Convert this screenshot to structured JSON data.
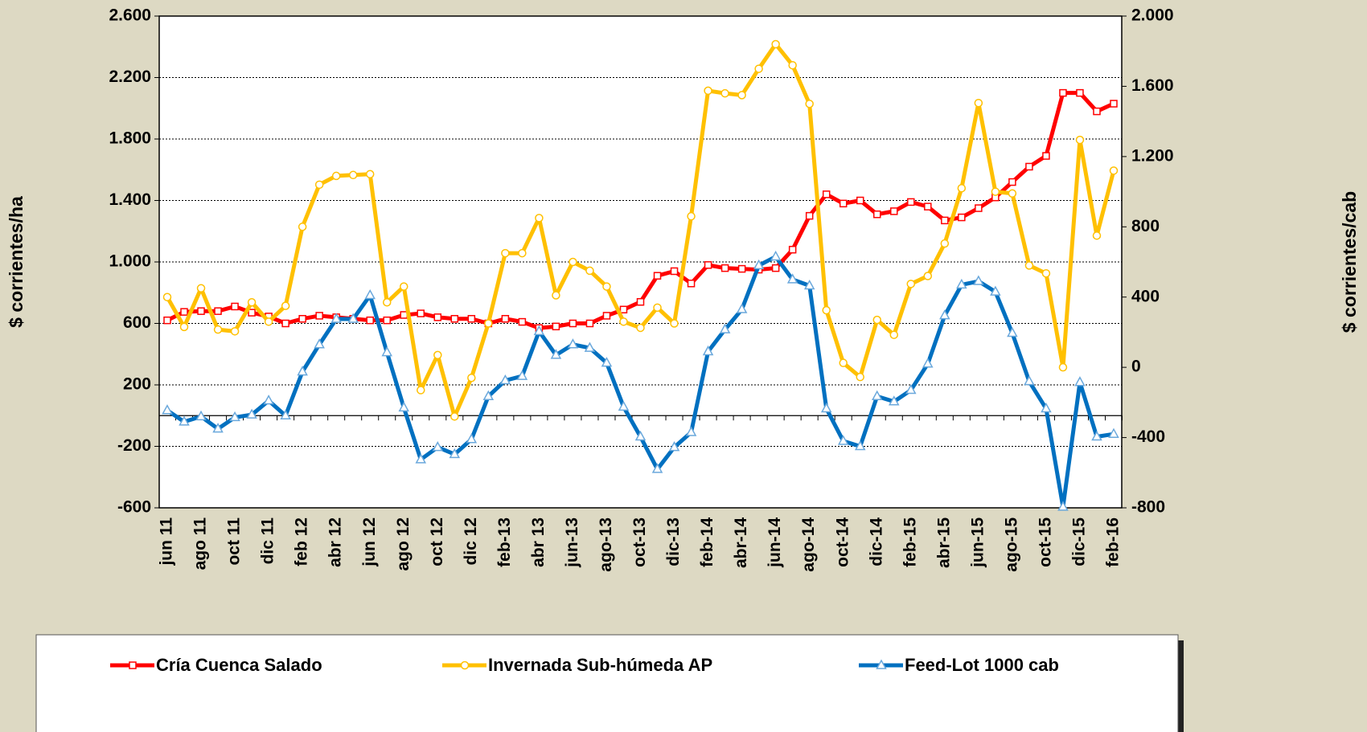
{
  "chart_data": {
    "type": "line",
    "y_label": "$ corrientes/ha",
    "y2_label": "$ corrientes/cab",
    "categories": [
      "jun 11",
      null,
      "ago 11",
      null,
      "oct 11",
      null,
      "dic 11",
      null,
      "feb 12",
      null,
      "abr 12",
      null,
      "jun 12",
      null,
      "ago 12",
      null,
      "oct 12",
      null,
      "dic 12",
      null,
      "feb-13",
      null,
      "abr 13",
      null,
      "jun-13",
      null,
      "ago-13",
      null,
      "oct-13",
      null,
      "dic-13",
      null,
      "feb-14",
      null,
      "abr-14",
      null,
      "jun-14",
      null,
      "ago-14",
      null,
      "oct-14",
      null,
      "dic-14",
      null,
      "feb-15",
      null,
      "abr-15",
      null,
      "jun-15",
      null,
      "ago-15",
      null,
      "oct-15",
      null,
      "dic-15",
      null,
      "feb-16"
    ],
    "series": [
      {
        "name": "Cría Cuenca Salado",
        "color": "#ff0000",
        "marker": "square",
        "axis": "y",
        "values": [
          620,
          675,
          680,
          680,
          710,
          670,
          645,
          600,
          630,
          650,
          640,
          630,
          620,
          620,
          655,
          665,
          640,
          630,
          630,
          600,
          630,
          610,
          570,
          580,
          600,
          600,
          650,
          690,
          740,
          910,
          940,
          860,
          980,
          960,
          955,
          950,
          960,
          1080,
          1300,
          1440,
          1380,
          1400,
          1310,
          1330,
          1390,
          1360,
          1270,
          1290,
          1350,
          1420,
          1520,
          1620,
          1690,
          2100,
          2100,
          1980,
          2030
        ]
      },
      {
        "name": "Invernada Sub-húmeda AP",
        "color": "#ffc000",
        "marker": "circle",
        "axis": "y2",
        "values": [
          400,
          230,
          450,
          215,
          205,
          370,
          260,
          350,
          800,
          1040,
          1090,
          1095,
          1100,
          370,
          460,
          -130,
          70,
          -280,
          -60,
          250,
          650,
          650,
          850,
          410,
          600,
          550,
          460,
          260,
          225,
          340,
          250,
          860,
          1575,
          1560,
          1550,
          1700,
          1840,
          1720,
          1500,
          325,
          25,
          -55,
          270,
          185,
          475,
          520,
          705,
          1020,
          1505,
          1000,
          990,
          580,
          535,
          0,
          1295,
          750,
          1120
        ]
      },
      {
        "name": "Feed-Lot 1000 cab",
        "color": "#0070c0",
        "marker": "triangle",
        "axis": "y2",
        "values": [
          -245,
          -310,
          -280,
          -350,
          -285,
          -270,
          -190,
          -275,
          -25,
          130,
          275,
          275,
          410,
          85,
          -230,
          -525,
          -455,
          -495,
          -410,
          -165,
          -75,
          -50,
          205,
          70,
          130,
          110,
          25,
          -225,
          -395,
          -580,
          -455,
          -370,
          90,
          215,
          330,
          580,
          630,
          500,
          465,
          -235,
          -420,
          -450,
          -165,
          -195,
          -130,
          20,
          295,
          470,
          490,
          430,
          195,
          -80,
          -235,
          -795,
          -85,
          -395,
          -380
        ]
      }
    ],
    "ylim": [
      -600,
      2600
    ],
    "yticks": [
      -600,
      -200,
      200,
      600,
      {
        "value": 1000,
        "label": "1.000"
      },
      {
        "value": 1400,
        "label": "1.400"
      },
      {
        "value": 1800,
        "label": "1.800"
      },
      {
        "value": 2200,
        "label": "2.200"
      },
      {
        "value": 2600,
        "label": "2.600"
      }
    ],
    "y2lim": [
      -800,
      2000
    ],
    "y2ticks": [
      -800,
      -400,
      0,
      400,
      800,
      {
        "value": 1200,
        "label": "1.200"
      },
      {
        "value": 1600,
        "label": "1.600"
      },
      {
        "value": 2000,
        "label": "2.000"
      }
    ],
    "grid": true,
    "legend": "bottom"
  }
}
